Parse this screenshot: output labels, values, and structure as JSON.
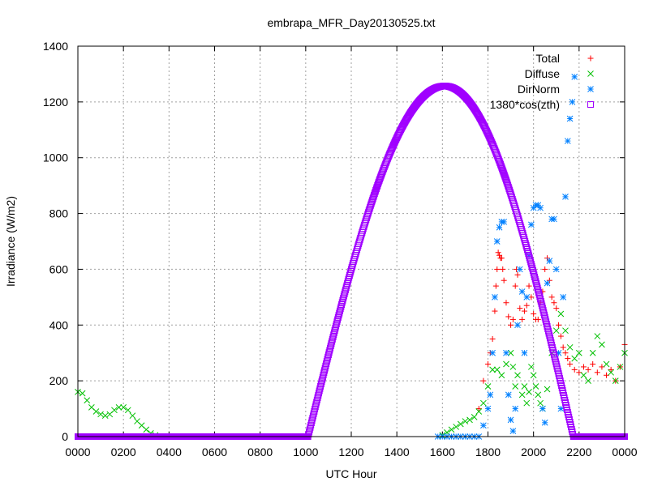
{
  "chart_data": {
    "type": "scatter",
    "title": "embrapa_MFR_Day20130525.txt",
    "xlabel": "UTC Hour",
    "ylabel": "Irradiance (W/m2)",
    "xlim": [
      0,
      24
    ],
    "ylim": [
      0,
      1400
    ],
    "x_tick_labels": [
      "0000",
      "0200",
      "0400",
      "0600",
      "0800",
      "1000",
      "1200",
      "1400",
      "1600",
      "1800",
      "2000",
      "2200",
      "0000"
    ],
    "y_tick_labels": [
      "0",
      "200",
      "400",
      "600",
      "800",
      "1000",
      "1200",
      "1400"
    ],
    "grid": true,
    "legend_position": "top-right",
    "series": [
      {
        "name": "Total",
        "color": "#ff0000",
        "marker": "plus",
        "points": [
          [
            17.6,
            100
          ],
          [
            17.8,
            200
          ],
          [
            18.0,
            260
          ],
          [
            18.1,
            300
          ],
          [
            18.2,
            350
          ],
          [
            18.3,
            450
          ],
          [
            18.35,
            540
          ],
          [
            18.4,
            600
          ],
          [
            18.45,
            660
          ],
          [
            18.5,
            650
          ],
          [
            18.55,
            640
          ],
          [
            18.6,
            640
          ],
          [
            18.65,
            600
          ],
          [
            18.7,
            560
          ],
          [
            18.8,
            480
          ],
          [
            18.9,
            430
          ],
          [
            19.0,
            400
          ],
          [
            19.1,
            420
          ],
          [
            19.2,
            540
          ],
          [
            19.25,
            600
          ],
          [
            19.3,
            580
          ],
          [
            19.4,
            460
          ],
          [
            19.5,
            420
          ],
          [
            19.6,
            450
          ],
          [
            19.7,
            470
          ],
          [
            19.8,
            540
          ],
          [
            19.9,
            500
          ],
          [
            20.0,
            440
          ],
          [
            20.1,
            420
          ],
          [
            20.2,
            420
          ],
          [
            20.3,
            480
          ],
          [
            20.4,
            520
          ],
          [
            20.5,
            600
          ],
          [
            20.6,
            640
          ],
          [
            20.7,
            560
          ],
          [
            20.8,
            500
          ],
          [
            20.9,
            480
          ],
          [
            21.0,
            460
          ],
          [
            21.1,
            400
          ],
          [
            21.2,
            360
          ],
          [
            21.3,
            320
          ],
          [
            21.4,
            300
          ],
          [
            21.5,
            280
          ],
          [
            21.6,
            260
          ],
          [
            21.8,
            240
          ],
          [
            22.0,
            230
          ],
          [
            22.2,
            250
          ],
          [
            22.4,
            240
          ],
          [
            22.6,
            260
          ],
          [
            22.8,
            230
          ],
          [
            23.0,
            250
          ],
          [
            23.2,
            220
          ],
          [
            23.4,
            240
          ],
          [
            23.6,
            200
          ],
          [
            23.8,
            250
          ],
          [
            24.0,
            330
          ]
        ]
      },
      {
        "name": "Diffuse",
        "color": "#00c000",
        "marker": "cross",
        "points": [
          [
            0.0,
            160
          ],
          [
            0.2,
            155
          ],
          [
            0.4,
            130
          ],
          [
            0.6,
            105
          ],
          [
            0.8,
            90
          ],
          [
            1.0,
            80
          ],
          [
            1.2,
            75
          ],
          [
            1.4,
            80
          ],
          [
            1.6,
            95
          ],
          [
            1.8,
            105
          ],
          [
            2.0,
            105
          ],
          [
            2.2,
            95
          ],
          [
            2.4,
            75
          ],
          [
            2.6,
            55
          ],
          [
            2.8,
            40
          ],
          [
            3.0,
            25
          ],
          [
            3.2,
            12
          ],
          [
            3.4,
            5
          ],
          [
            3.6,
            0
          ],
          [
            16.0,
            5
          ],
          [
            16.2,
            15
          ],
          [
            16.4,
            25
          ],
          [
            16.6,
            35
          ],
          [
            16.8,
            45
          ],
          [
            17.0,
            55
          ],
          [
            17.2,
            60
          ],
          [
            17.4,
            70
          ],
          [
            17.6,
            90
          ],
          [
            17.8,
            120
          ],
          [
            18.0,
            180
          ],
          [
            18.2,
            240
          ],
          [
            18.4,
            240
          ],
          [
            18.6,
            220
          ],
          [
            18.8,
            260
          ],
          [
            19.0,
            300
          ],
          [
            19.1,
            250
          ],
          [
            19.2,
            180
          ],
          [
            19.3,
            220
          ],
          [
            19.5,
            150
          ],
          [
            19.6,
            180
          ],
          [
            19.7,
            120
          ],
          [
            19.8,
            160
          ],
          [
            19.9,
            250
          ],
          [
            20.0,
            220
          ],
          [
            20.1,
            180
          ],
          [
            20.2,
            150
          ],
          [
            20.3,
            120
          ],
          [
            20.4,
            100
          ],
          [
            20.6,
            170
          ],
          [
            20.8,
            300
          ],
          [
            21.0,
            380
          ],
          [
            21.2,
            440
          ],
          [
            21.4,
            380
          ],
          [
            21.6,
            320
          ],
          [
            21.8,
            280
          ],
          [
            22.0,
            300
          ],
          [
            22.2,
            220
          ],
          [
            22.4,
            200
          ],
          [
            22.6,
            300
          ],
          [
            22.8,
            360
          ],
          [
            23.0,
            330
          ],
          [
            23.2,
            260
          ],
          [
            23.4,
            230
          ],
          [
            23.6,
            200
          ],
          [
            23.8,
            250
          ],
          [
            24.0,
            300
          ]
        ]
      },
      {
        "name": "DirNorm",
        "color": "#0080ff",
        "marker": "star",
        "points": [
          [
            15.8,
            0
          ],
          [
            16.0,
            0
          ],
          [
            16.2,
            0
          ],
          [
            16.4,
            0
          ],
          [
            16.6,
            0
          ],
          [
            16.8,
            0
          ],
          [
            17.0,
            0
          ],
          [
            17.2,
            0
          ],
          [
            17.4,
            0
          ],
          [
            17.6,
            0
          ],
          [
            17.8,
            40
          ],
          [
            18.0,
            100
          ],
          [
            18.1,
            150
          ],
          [
            18.2,
            300
          ],
          [
            18.3,
            500
          ],
          [
            18.4,
            700
          ],
          [
            18.5,
            750
          ],
          [
            18.6,
            770
          ],
          [
            18.7,
            770
          ],
          [
            18.8,
            300
          ],
          [
            18.9,
            150
          ],
          [
            19.0,
            60
          ],
          [
            19.1,
            20
          ],
          [
            19.2,
            100
          ],
          [
            19.3,
            400
          ],
          [
            19.4,
            600
          ],
          [
            19.5,
            520
          ],
          [
            19.6,
            300
          ],
          [
            19.7,
            500
          ],
          [
            19.8,
            650
          ],
          [
            19.9,
            760
          ],
          [
            20.0,
            820
          ],
          [
            20.1,
            830
          ],
          [
            20.2,
            830
          ],
          [
            20.3,
            820
          ],
          [
            20.4,
            100
          ],
          [
            20.5,
            50
          ],
          [
            20.6,
            550
          ],
          [
            20.7,
            630
          ],
          [
            20.8,
            780
          ],
          [
            20.9,
            780
          ],
          [
            21.0,
            600
          ],
          [
            21.1,
            300
          ],
          [
            21.2,
            100
          ],
          [
            21.3,
            500
          ],
          [
            21.4,
            860
          ],
          [
            21.5,
            1060
          ],
          [
            21.6,
            1140
          ],
          [
            21.7,
            1200
          ],
          [
            21.8,
            1290
          ],
          [
            22.0,
            0
          ],
          [
            22.2,
            0
          ],
          [
            22.4,
            0
          ],
          [
            22.6,
            0
          ],
          [
            22.8,
            0
          ],
          [
            23.0,
            0
          ],
          [
            23.2,
            0
          ],
          [
            23.4,
            0
          ],
          [
            23.6,
            0
          ],
          [
            23.8,
            0
          ],
          [
            24.0,
            0
          ]
        ]
      },
      {
        "name": "1380*cos(zth)",
        "color": "#a000ff",
        "marker": "square",
        "sunrise": 10.1,
        "sunset": 21.75,
        "peak_time": 16.1,
        "peak_value": 1257
      }
    ]
  }
}
